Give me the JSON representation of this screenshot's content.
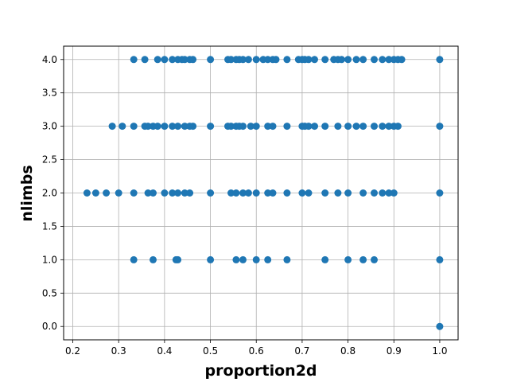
{
  "chart_data": {
    "type": "scatter",
    "title": "",
    "xlabel": "proportion2d",
    "ylabel": "nlimbs",
    "xlim": [
      0.18,
      1.04
    ],
    "ylim": [
      -0.2,
      4.2
    ],
    "xticks": [
      "0.2",
      "0.3",
      "0.4",
      "0.5",
      "0.6",
      "0.7",
      "0.8",
      "0.9",
      "1.0"
    ],
    "yticks": [
      "0.0",
      "0.5",
      "1.0",
      "1.5",
      "2.0",
      "2.5",
      "3.0",
      "3.5",
      "4.0"
    ],
    "grid": true,
    "marker_color": "#1f77b4",
    "series": [
      {
        "points": [
          [
            1.0,
            0
          ],
          [
            0.333,
            1
          ],
          [
            0.375,
            1
          ],
          [
            0.425,
            1
          ],
          [
            0.429,
            1
          ],
          [
            0.5,
            1
          ],
          [
            0.556,
            1
          ],
          [
            0.571,
            1
          ],
          [
            0.6,
            1
          ],
          [
            0.625,
            1
          ],
          [
            0.667,
            1
          ],
          [
            0.75,
            1
          ],
          [
            0.8,
            1
          ],
          [
            0.833,
            1
          ],
          [
            0.857,
            1
          ],
          [
            1.0,
            1
          ],
          [
            0.231,
            2
          ],
          [
            0.25,
            2
          ],
          [
            0.273,
            2
          ],
          [
            0.3,
            2
          ],
          [
            0.333,
            2
          ],
          [
            0.364,
            2
          ],
          [
            0.375,
            2
          ],
          [
            0.4,
            2
          ],
          [
            0.417,
            2
          ],
          [
            0.429,
            2
          ],
          [
            0.444,
            2
          ],
          [
            0.455,
            2
          ],
          [
            0.5,
            2
          ],
          [
            0.545,
            2
          ],
          [
            0.556,
            2
          ],
          [
            0.571,
            2
          ],
          [
            0.583,
            2
          ],
          [
            0.6,
            2
          ],
          [
            0.625,
            2
          ],
          [
            0.636,
            2
          ],
          [
            0.667,
            2
          ],
          [
            0.7,
            2
          ],
          [
            0.714,
            2
          ],
          [
            0.75,
            2
          ],
          [
            0.778,
            2
          ],
          [
            0.8,
            2
          ],
          [
            0.833,
            2
          ],
          [
            0.857,
            2
          ],
          [
            0.875,
            2
          ],
          [
            0.889,
            2
          ],
          [
            0.9,
            2
          ],
          [
            1.0,
            2
          ],
          [
            0.286,
            3
          ],
          [
            0.308,
            3
          ],
          [
            0.333,
            3
          ],
          [
            0.357,
            3
          ],
          [
            0.364,
            3
          ],
          [
            0.375,
            3
          ],
          [
            0.385,
            3
          ],
          [
            0.4,
            3
          ],
          [
            0.417,
            3
          ],
          [
            0.429,
            3
          ],
          [
            0.444,
            3
          ],
          [
            0.455,
            3
          ],
          [
            0.462,
            3
          ],
          [
            0.5,
            3
          ],
          [
            0.538,
            3
          ],
          [
            0.545,
            3
          ],
          [
            0.556,
            3
          ],
          [
            0.563,
            3
          ],
          [
            0.571,
            3
          ],
          [
            0.588,
            3
          ],
          [
            0.6,
            3
          ],
          [
            0.625,
            3
          ],
          [
            0.636,
            3
          ],
          [
            0.667,
            3
          ],
          [
            0.7,
            3
          ],
          [
            0.706,
            3
          ],
          [
            0.714,
            3
          ],
          [
            0.727,
            3
          ],
          [
            0.75,
            3
          ],
          [
            0.778,
            3
          ],
          [
            0.8,
            3
          ],
          [
            0.818,
            3
          ],
          [
            0.833,
            3
          ],
          [
            0.857,
            3
          ],
          [
            0.875,
            3
          ],
          [
            0.889,
            3
          ],
          [
            0.9,
            3
          ],
          [
            0.909,
            3
          ],
          [
            1.0,
            3
          ],
          [
            0.333,
            4
          ],
          [
            0.357,
            4
          ],
          [
            0.385,
            4
          ],
          [
            0.4,
            4
          ],
          [
            0.417,
            4
          ],
          [
            0.429,
            4
          ],
          [
            0.438,
            4
          ],
          [
            0.444,
            4
          ],
          [
            0.455,
            4
          ],
          [
            0.462,
            4
          ],
          [
            0.5,
            4
          ],
          [
            0.538,
            4
          ],
          [
            0.545,
            4
          ],
          [
            0.556,
            4
          ],
          [
            0.563,
            4
          ],
          [
            0.571,
            4
          ],
          [
            0.583,
            4
          ],
          [
            0.6,
            4
          ],
          [
            0.615,
            4
          ],
          [
            0.625,
            4
          ],
          [
            0.636,
            4
          ],
          [
            0.643,
            4
          ],
          [
            0.667,
            4
          ],
          [
            0.692,
            4
          ],
          [
            0.7,
            4
          ],
          [
            0.706,
            4
          ],
          [
            0.714,
            4
          ],
          [
            0.727,
            4
          ],
          [
            0.75,
            4
          ],
          [
            0.769,
            4
          ],
          [
            0.778,
            4
          ],
          [
            0.786,
            4
          ],
          [
            0.8,
            4
          ],
          [
            0.818,
            4
          ],
          [
            0.833,
            4
          ],
          [
            0.857,
            4
          ],
          [
            0.875,
            4
          ],
          [
            0.889,
            4
          ],
          [
            0.9,
            4
          ],
          [
            0.909,
            4
          ],
          [
            0.917,
            4
          ],
          [
            1.0,
            4
          ]
        ]
      }
    ]
  }
}
